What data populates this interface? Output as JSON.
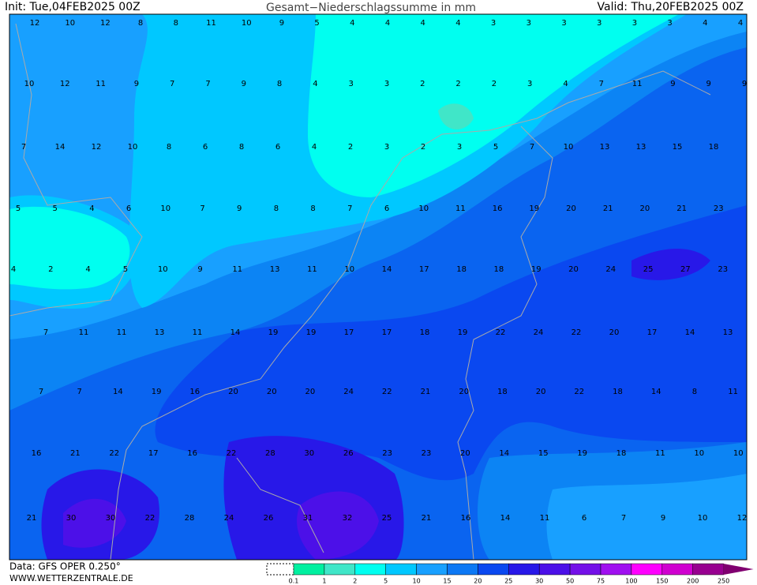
{
  "header": {
    "init": "Init: Tue,04FEB2025 00Z",
    "title": "Gesamt−Niederschlagssumme in mm",
    "valid": "Valid: Thu,20FEB2025 00Z"
  },
  "map": {
    "rows": [
      [
        12,
        10,
        12,
        8,
        8,
        11,
        10,
        9,
        5,
        4,
        4,
        4,
        4,
        3,
        3,
        3,
        3,
        3,
        3,
        4,
        4
      ],
      [
        10,
        12,
        11,
        9,
        7,
        7,
        9,
        8,
        4,
        3,
        3,
        2,
        2,
        2,
        3,
        4,
        7,
        11,
        9,
        9,
        9
      ],
      [
        7,
        14,
        12,
        10,
        8,
        6,
        8,
        6,
        4,
        2,
        3,
        2,
        3,
        5,
        7,
        10,
        13,
        13,
        15,
        18
      ],
      [
        5,
        5,
        4,
        6,
        10,
        7,
        9,
        8,
        8,
        7,
        6,
        10,
        11,
        16,
        19,
        20,
        21,
        20,
        21,
        23
      ],
      [
        4,
        2,
        4,
        5,
        10,
        9,
        11,
        13,
        11,
        10,
        14,
        17,
        18,
        18,
        19,
        20,
        24,
        25,
        27,
        23
      ],
      [
        7,
        11,
        11,
        13,
        11,
        14,
        19,
        19,
        17,
        17,
        18,
        19,
        22,
        24,
        22,
        20,
        17,
        14,
        13
      ],
      [
        7,
        7,
        14,
        19,
        16,
        20,
        20,
        20,
        24,
        22,
        21,
        20,
        18,
        20,
        22,
        18,
        14,
        8,
        11
      ],
      [
        16,
        21,
        22,
        17,
        16,
        22,
        28,
        30,
        26,
        23,
        23,
        20,
        14,
        15,
        19,
        18,
        11,
        10,
        10
      ],
      [
        21,
        30,
        30,
        22,
        28,
        24,
        26,
        31,
        32,
        25,
        21,
        16,
        14,
        11,
        6,
        7,
        9,
        10,
        12
      ]
    ]
  },
  "legend": {
    "levels": [
      0.1,
      1,
      2,
      5,
      10,
      15,
      20,
      25,
      30,
      50,
      75,
      100,
      150,
      200,
      250
    ],
    "colors": [
      "#00f0a0",
      "#40e6c8",
      "#00fff0",
      "#00c8ff",
      "#18a0ff",
      "#0c78f4",
      "#0a48f0",
      "#2818e8",
      "#4c10e8",
      "#7410e8",
      "#a010f0",
      "#ff00ff",
      "#d000d0",
      "#980090",
      "#800070"
    ]
  },
  "footer": {
    "data": "Data: GFS OPER 0.250°",
    "site": "WWW.WETTERZENTRALE.DE"
  }
}
